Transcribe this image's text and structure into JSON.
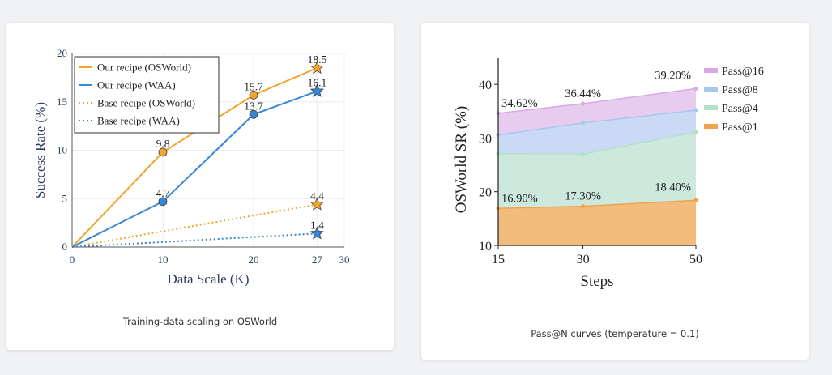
{
  "charts": {
    "left_caption": "Training-data scaling on OSWorld",
    "right_caption": "Pass@N curves (temperature = 0.1)"
  },
  "chart_data": [
    {
      "type": "line",
      "title": "",
      "xlabel": "Data Scale (K)",
      "ylabel": "Success Rate (%)",
      "xlim": [
        0,
        30
      ],
      "ylim": [
        0,
        20
      ],
      "xticks": [
        0,
        10,
        20,
        27,
        30
      ],
      "yticks": [
        0,
        5,
        10,
        15,
        20
      ],
      "legend_position": "top-left",
      "series": [
        {
          "name": "Our recipe (OSWorld)",
          "color": "#f0a530",
          "style": "solid",
          "x": [
            0,
            10,
            20,
            27
          ],
          "y": [
            0,
            9.8,
            15.7,
            18.5
          ],
          "labels": [
            "",
            "9.8",
            "15.7",
            "18.5"
          ]
        },
        {
          "name": "Our recipe (WAA)",
          "color": "#3a86d6",
          "style": "solid",
          "x": [
            0,
            10,
            20,
            27
          ],
          "y": [
            0,
            4.7,
            13.7,
            16.1
          ],
          "labels": [
            "",
            "4.7",
            "13.7",
            "16.1"
          ]
        },
        {
          "name": "Base recipe (OSWorld)",
          "color": "#f0a530",
          "style": "dotted",
          "x": [
            0,
            27
          ],
          "y": [
            0,
            4.4
          ],
          "labels": [
            "",
            "4.4"
          ]
        },
        {
          "name": "Base recipe (WAA)",
          "color": "#3a86d6",
          "style": "dotted",
          "x": [
            0,
            27
          ],
          "y": [
            0,
            1.4
          ],
          "labels": [
            "",
            "1.4"
          ]
        }
      ]
    },
    {
      "type": "area",
      "title": "",
      "xlabel": "Steps",
      "ylabel": "OSWorld SR (%)",
      "x": [
        15,
        30,
        50
      ],
      "xlim": [
        15,
        50
      ],
      "ylim": [
        10,
        45
      ],
      "xticks": [
        15,
        30,
        50
      ],
      "yticks": [
        10,
        20,
        30,
        40
      ],
      "legend_position": "top-right",
      "series": [
        {
          "name": "Pass@16",
          "color": "#e4c6ee",
          "line": "#d9a9e6",
          "values": [
            34.6,
            36.4,
            39.2
          ]
        },
        {
          "name": "Pass@8",
          "color": "#c6dcf5",
          "line": "#a7c7ef",
          "values": [
            30.6,
            32.8,
            35.2
          ]
        },
        {
          "name": "Pass@4",
          "color": "#cdeadb",
          "line": "#b3e0c7",
          "values": [
            27.1,
            27.0,
            31.1
          ]
        },
        {
          "name": "Pass@1",
          "color": "#f6b772",
          "line": "#f2a24f",
          "values": [
            16.9,
            17.3,
            18.4
          ]
        }
      ],
      "annotations": [
        "34.62%",
        "36.44%",
        "39.20%",
        "16.90%",
        "17.30%",
        "18.40%"
      ]
    }
  ]
}
